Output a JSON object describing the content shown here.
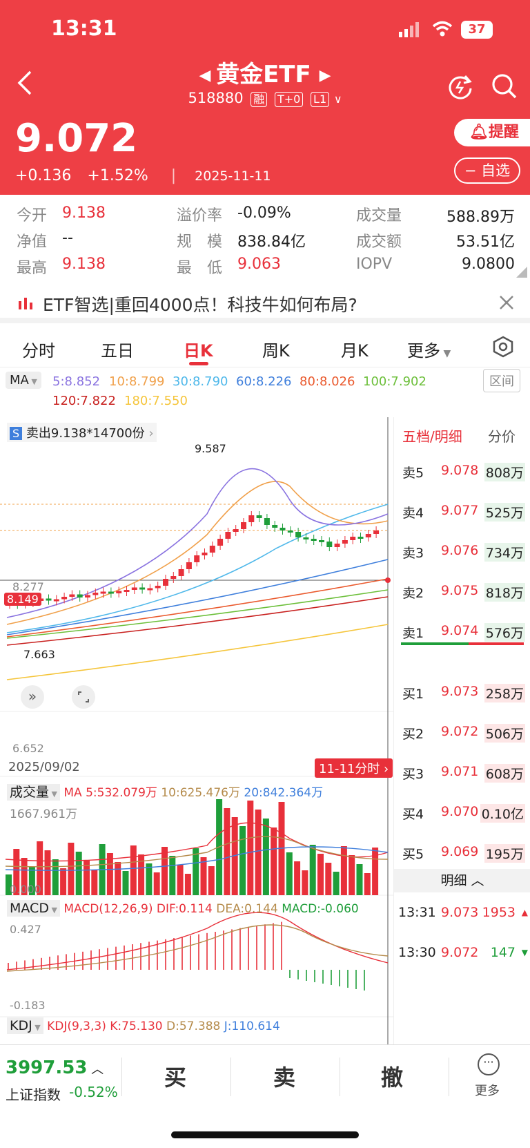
{
  "status": {
    "time": "13:31",
    "battery": "37"
  },
  "header": {
    "title": "黄金ETF",
    "code": "518880",
    "tags": [
      "融",
      "T+0",
      "L1"
    ],
    "price": "9.072",
    "change": "+0.136",
    "change_pct": "+1.52%",
    "date": "2025-11-11",
    "remind_label": "提醒",
    "watch_label": "− 自选"
  },
  "stats": {
    "open_label": "今开",
    "open": "9.138",
    "nav_label": "净值",
    "nav": "--",
    "high_label": "最高",
    "high": "9.138",
    "premium_label": "溢价率",
    "premium": "-0.09%",
    "scale_label": "规　模",
    "scale": "838.84亿",
    "low_label": "最　低",
    "low": "9.063",
    "volume_label": "成交量",
    "volume": "588.89万",
    "amount_label": "成交额",
    "amount": "53.51亿",
    "iopv_label": "IOPV",
    "iopv": "9.0800"
  },
  "banner": {
    "text": "ETF智选|重回4000点！科技牛如何布局?"
  },
  "tabs": [
    "分时",
    "五日",
    "日K",
    "周K",
    "月K",
    "更多"
  ],
  "active_tab": "日K",
  "ma": {
    "label": "MA",
    "interval_label": "区间",
    "values": [
      {
        "text": "5:8.852",
        "color": "#8a73e0"
      },
      {
        "text": "10:8.799",
        "color": "#f0a04a"
      },
      {
        "text": "30:8.790",
        "color": "#4fb8ea"
      },
      {
        "text": "60:8.226",
        "color": "#3f7fdc"
      },
      {
        "text": "80:8.026",
        "color": "#ea5a2e"
      },
      {
        "text": "100:7.902",
        "color": "#6cbf3a"
      },
      {
        "text": "120:7.822",
        "color": "#c8201e"
      },
      {
        "text": "180:7.550",
        "color": "#f5c53b"
      }
    ]
  },
  "kline": {
    "sell_signal": "卖出9.138*14700份",
    "high_mark": "9.587",
    "low_mark": "7.663",
    "axis_top": "8.277",
    "price_line": "8.149",
    "axis_bottom": "6.652",
    "start_date": "2025/09/02",
    "intraday_link": "11-11分时"
  },
  "volume": {
    "label": "成交量",
    "ma_text": "MA 5:532.079万",
    "ma10_text": "10:625.476万",
    "ma20_text": "20:842.364万",
    "top": "1667.961万",
    "bottom": "0.000"
  },
  "macd": {
    "label": "MACD",
    "params": "MACD(12,26,9)",
    "dif": "DIF:0.114",
    "dea": "DEA:0.144",
    "macd": "MACD:-0.060",
    "top": "0.427",
    "bottom": "-0.183"
  },
  "kdj": {
    "label": "KDJ",
    "params": "KDJ(9,3,3)",
    "k": "K:75.130",
    "d": "D:57.388",
    "j": "J:110.614"
  },
  "orderbook": {
    "tab1": "五档/明细",
    "tab2": "分价",
    "asks": [
      {
        "label": "卖5",
        "price": "9.078",
        "vol": "808万"
      },
      {
        "label": "卖4",
        "price": "9.077",
        "vol": "525万"
      },
      {
        "label": "卖3",
        "price": "9.076",
        "vol": "734万"
      },
      {
        "label": "卖2",
        "price": "9.075",
        "vol": "818万"
      },
      {
        "label": "卖1",
        "price": "9.074",
        "vol": "576万"
      }
    ],
    "bids": [
      {
        "label": "买1",
        "price": "9.073",
        "vol": "258万"
      },
      {
        "label": "买2",
        "price": "9.072",
        "vol": "506万"
      },
      {
        "label": "买3",
        "price": "9.071",
        "vol": "608万"
      },
      {
        "label": "买4",
        "price": "9.070",
        "vol": "0.10亿"
      },
      {
        "label": "买5",
        "price": "9.069",
        "vol": "195万"
      }
    ],
    "detail_label": "明细 ︿",
    "trades": [
      {
        "time": "13:31",
        "price": "9.073",
        "vol": "1953"
      },
      {
        "time": "13:30",
        "price": "9.072",
        "vol": "147"
      }
    ]
  },
  "bottom": {
    "index_value": "3997.53",
    "index_name": "上证指数",
    "index_change": "-0.52%",
    "buy": "买",
    "sell": "卖",
    "cancel": "撤",
    "more": "更多"
  }
}
